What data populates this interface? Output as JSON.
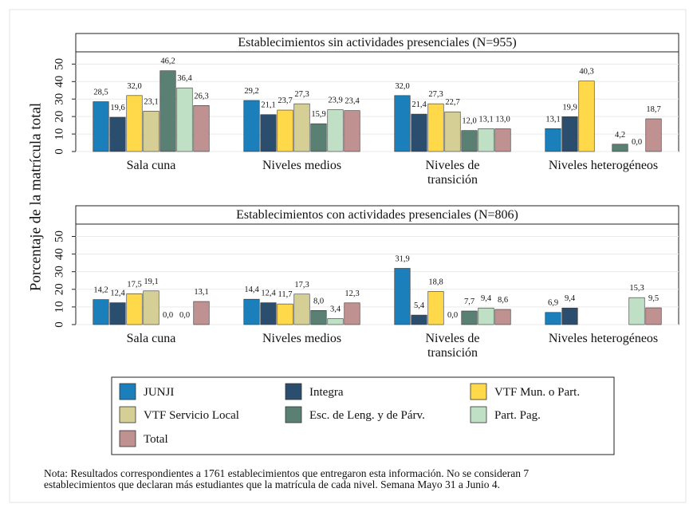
{
  "chart_data": [
    {
      "type": "bar",
      "title": "Establecimientos sin actividades presenciales (N=955)",
      "categories": [
        "Sala cuna",
        "Niveles medios",
        "Niveles de\ntransición",
        "Niveles heterogéneos"
      ],
      "ylim": [
        0,
        57
      ],
      "yticks": [
        0,
        10,
        20,
        30,
        40,
        50
      ],
      "series": [
        {
          "values": [
            28.5,
            29.2,
            32.0,
            13.1
          ],
          "value_labels": [
            "28,5",
            "29,2",
            "32,0",
            "13,1"
          ]
        },
        {
          "values": [
            19.6,
            21.1,
            21.4,
            19.9
          ],
          "value_labels": [
            "19,6",
            "21,1",
            "21,4",
            "19,9"
          ]
        },
        {
          "values": [
            32.0,
            23.7,
            27.3,
            40.3
          ],
          "value_labels": [
            "32,0",
            "23,7",
            "27,3",
            "40,3"
          ]
        },
        {
          "values": [
            23.1,
            27.3,
            22.7,
            null
          ],
          "value_labels": [
            "23,1",
            "27,3",
            "22,7",
            null
          ]
        },
        {
          "values": [
            46.2,
            15.9,
            12.0,
            4.2
          ],
          "value_labels": [
            "46,2",
            "15,9",
            "12,0",
            "4,2"
          ]
        },
        {
          "values": [
            36.4,
            23.9,
            13.1,
            0.0
          ],
          "value_labels": [
            "36,4",
            "23,9",
            "13,1",
            "0,0"
          ]
        },
        {
          "values": [
            26.3,
            23.4,
            13.0,
            18.7
          ],
          "value_labels": [
            "26,3",
            "23,4",
            "13,0",
            "18,7"
          ]
        }
      ]
    },
    {
      "type": "bar",
      "title": "Establecimientos con actividades presenciales (N=806)",
      "categories": [
        "Sala cuna",
        "Niveles medios",
        "Niveles de\ntransición",
        "Niveles heterogéneos"
      ],
      "ylim": [
        0,
        57
      ],
      "yticks": [
        0,
        10,
        20,
        30,
        40,
        50
      ],
      "series": [
        {
          "values": [
            14.2,
            14.4,
            31.9,
            6.9
          ],
          "value_labels": [
            "14,2",
            "14,4",
            "31,9",
            "6,9"
          ]
        },
        {
          "values": [
            12.4,
            12.4,
            5.4,
            9.4
          ],
          "value_labels": [
            "12,4",
            "12,4",
            "5,4",
            "9,4"
          ]
        },
        {
          "values": [
            17.5,
            11.7,
            18.8,
            null
          ],
          "value_labels": [
            "17,5",
            "11,7",
            "18,8",
            null
          ]
        },
        {
          "values": [
            19.1,
            17.3,
            0.0,
            null
          ],
          "value_labels": [
            "19,1",
            "17,3",
            "0,0",
            null
          ]
        },
        {
          "values": [
            0.0,
            8.0,
            7.7,
            null
          ],
          "value_labels": [
            "0,0",
            "8,0",
            "7,7",
            null
          ]
        },
        {
          "values": [
            0.0,
            3.4,
            9.4,
            15.3
          ],
          "value_labels": [
            "0,0",
            "3,4",
            "9,4",
            "15,3"
          ]
        },
        {
          "values": [
            13.1,
            12.3,
            8.6,
            9.5
          ],
          "value_labels": [
            "13,1",
            "12,3",
            "8,6",
            "9,5"
          ]
        }
      ]
    }
  ],
  "ylabel": "Porcentaje de la matrícula total",
  "legend": [
    {
      "name": "JUNJI",
      "color": "#1a7fba"
    },
    {
      "name": "Integra",
      "color": "#2c4e6e"
    },
    {
      "name": "VTF Mun. o Part.",
      "color": "#ffd94a"
    },
    {
      "name": "VTF Servicio Local",
      "color": "#d6cf95"
    },
    {
      "name": "Esc. de Leng. y de Párv.",
      "color": "#5a8074"
    },
    {
      "name": "Part. Pag.",
      "color": "#bfe0c4"
    },
    {
      "name": "Total",
      "color": "#bf9190"
    }
  ],
  "note": [
    "Nota: Resultados correspondientes a 1761 establecimientos que entregaron esta información. No se consideran 7",
    "establecimientos que declaran más estudiantes que la matrícula de cada nivel. Semana Mayo 31 a Junio 4."
  ]
}
